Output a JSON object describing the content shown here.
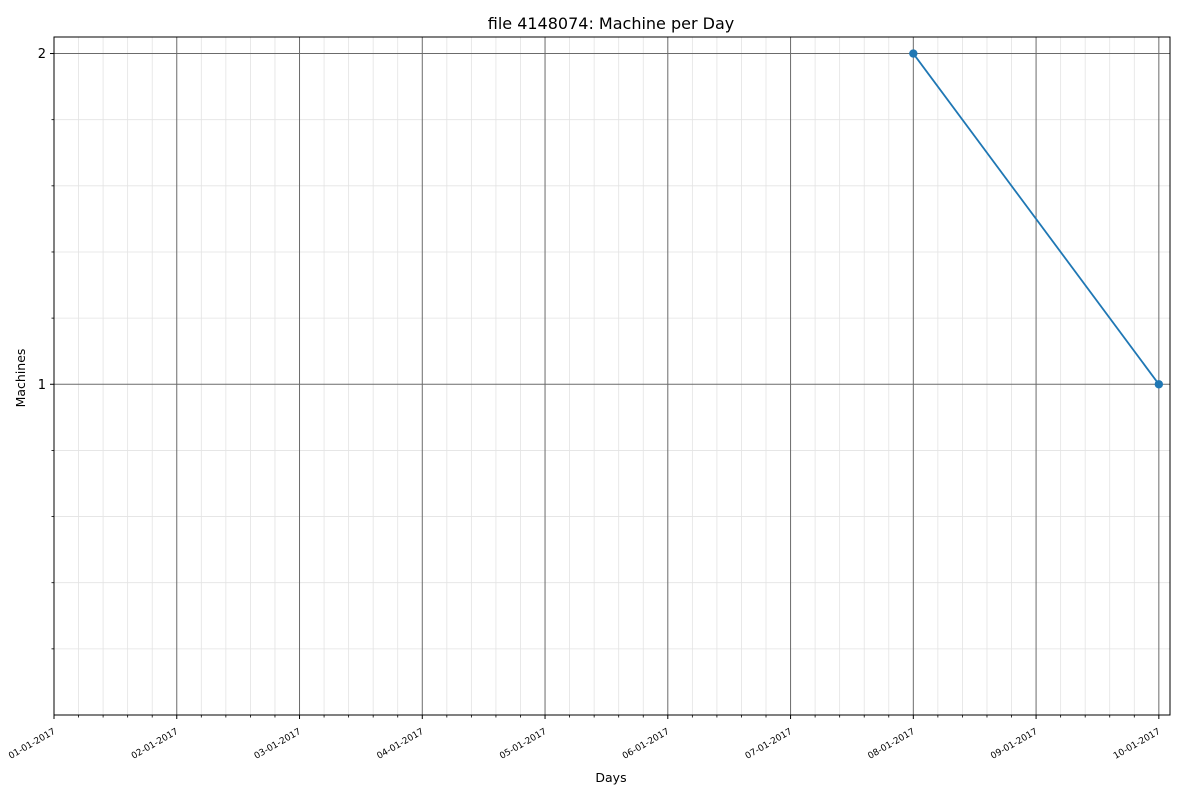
{
  "chart_data": {
    "type": "line",
    "title": "file 4148074: Machine per Day",
    "xlabel": "Days",
    "ylabel": "Machines",
    "x_tick_labels": [
      "01-01-2017",
      "02-01-2017",
      "03-01-2017",
      "04-01-2017",
      "05-01-2017",
      "06-01-2017",
      "07-01-2017",
      "08-01-2017",
      "09-01-2017",
      "10-01-2017"
    ],
    "y_tick_labels": [
      "1",
      "2"
    ],
    "y_ticks": [
      1,
      2
    ],
    "ylim": [
      0.0,
      2.05
    ],
    "xlim": [
      "2017-01-01",
      "2017-01-10"
    ],
    "grid": true,
    "minor_grid": true,
    "series": [
      {
        "color": "#1f77b4",
        "points": [
          {
            "x": "2017-01-08",
            "y": 2
          },
          {
            "x": "2017-01-10",
            "y": 1
          }
        ]
      }
    ]
  }
}
